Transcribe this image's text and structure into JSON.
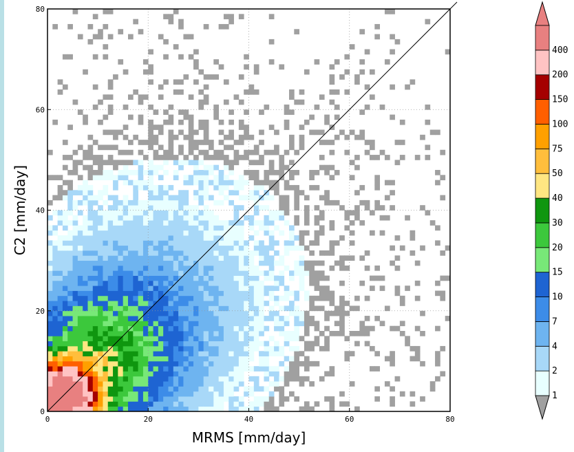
{
  "chart_data": {
    "type": "heatmap",
    "title": "",
    "xlabel": "MRMS [mm/day]",
    "ylabel": "C2 [mm/day]",
    "xlim": [
      0,
      80
    ],
    "ylim": [
      0,
      80
    ],
    "x_ticks": [
      "0",
      "20",
      "40",
      "60",
      "80"
    ],
    "y_ticks": [
      "0",
      "20",
      "40",
      "60",
      "80"
    ],
    "grid": "dotted",
    "one_to_one_line": true,
    "bin_size": 1,
    "colorbar": {
      "placement": "right",
      "extend": "both",
      "levels": [
        "1",
        "2",
        "4",
        "7",
        "10",
        "15",
        "20",
        "30",
        "40",
        "50",
        "75",
        "100",
        "150",
        "200",
        "400"
      ],
      "colors": [
        "#e8ffff",
        "#a8d8f8",
        "#6eb4f0",
        "#3c8ce8",
        "#1e64d2",
        "#78e878",
        "#3cc83c",
        "#0f960f",
        "#ffe682",
        "#ffbe3c",
        "#ffa000",
        "#ff5f00",
        "#a50000",
        "#ffc3c3",
        "#e88080"
      ],
      "under_color": "#a0a0a0",
      "over_color": "#e88080"
    },
    "density_model": {
      "description_fields_only": true,
      "core_peak": [
        3,
        3
      ],
      "regression_slope": 0.95
    }
  }
}
